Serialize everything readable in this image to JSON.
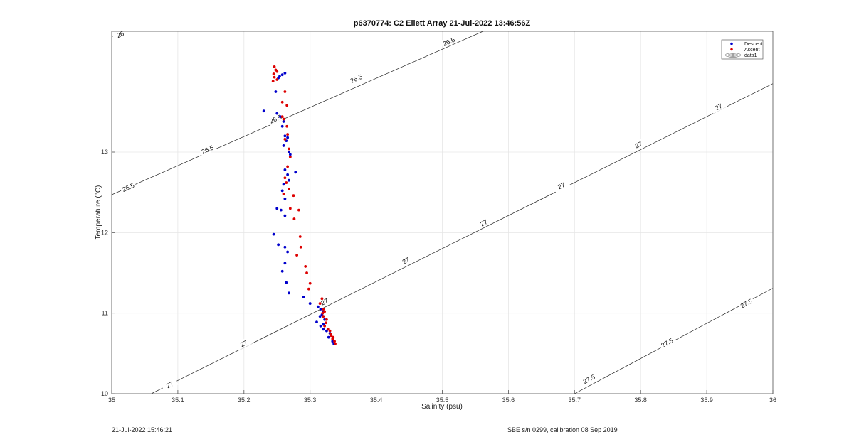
{
  "footer": {
    "left": "21-Jul-2022 15:46:21",
    "right": "SBE s/n 0299, calibration 08 Sep 2019"
  },
  "colors": {
    "descent": "#0000cc",
    "ascent": "#dd0000",
    "contour": "#222222",
    "grid": "#e6e6e6"
  },
  "chart_data": {
    "type": "scatter",
    "title": "p6370774: C2 Ellett Array 21-Jul-2022 13:46:56Z",
    "xlabel": "Salinity (psu)",
    "ylabel": "Temperature (°C)",
    "xlim": [
      35,
      36
    ],
    "ylim": [
      10,
      14.5
    ],
    "xticks": [
      35,
      35.1,
      35.2,
      35.3,
      35.4,
      35.5,
      35.6,
      35.7,
      35.8,
      35.9,
      36
    ],
    "xtick_labels": [
      "35",
      "35.1",
      "35.2",
      "35.3",
      "35.4",
      "35.5",
      "35.6",
      "35.7",
      "35.8",
      "35.9",
      "36"
    ],
    "yticks": [
      10,
      11,
      12,
      13
    ],
    "ytick_labels": [
      "10",
      "11",
      "12",
      "13"
    ],
    "grid": true,
    "legend_position": "top-right",
    "legend": [
      "Descent",
      "Ascent",
      "data1"
    ],
    "contours": [
      {
        "label": "26",
        "points": [
          [
            35,
            14.43
          ],
          [
            35.035,
            14.55
          ]
        ],
        "label_positions": [
          [
            35.013,
            14.46
          ]
        ]
      },
      {
        "label": "26.5",
        "points": [
          [
            35,
            12.47
          ],
          [
            35.7,
            15.0
          ]
        ],
        "label_positions": [
          [
            35.025,
            12.56
          ],
          [
            35.145,
            13.03
          ],
          [
            35.248,
            13.41
          ],
          [
            35.37,
            13.91
          ],
          [
            35.51,
            14.37
          ],
          [
            35.63,
            14.83
          ]
        ]
      },
      {
        "label": "27",
        "points": [
          [
            35.06,
            10.0
          ],
          [
            36.0,
            13.85
          ]
        ],
        "label_positions": [
          [
            35.088,
            10.11
          ],
          [
            35.2,
            10.62
          ],
          [
            35.322,
            11.14
          ],
          [
            35.445,
            11.65
          ],
          [
            35.563,
            12.12
          ],
          [
            35.68,
            12.58
          ],
          [
            35.797,
            13.09
          ],
          [
            35.918,
            13.56
          ]
        ]
      },
      {
        "label": "27.5",
        "points": [
          [
            35.7,
            10.0
          ],
          [
            36.0,
            11.31
          ]
        ],
        "label_positions": [
          [
            35.722,
            10.18
          ],
          [
            35.84,
            10.63
          ],
          [
            35.96,
            11.12
          ]
        ]
      }
    ],
    "series": [
      {
        "name": "Descent",
        "x": [
          35.254,
          35.258,
          35.252,
          35.262,
          35.248,
          35.23,
          35.25,
          35.255,
          35.26,
          35.258,
          35.262,
          35.266,
          35.264,
          35.26,
          35.268,
          35.27,
          35.278,
          35.262,
          35.266,
          35.268,
          35.26,
          35.258,
          35.262,
          35.25,
          35.256,
          35.262,
          35.245,
          35.252,
          35.262,
          35.266,
          35.262,
          35.258,
          35.264,
          35.268,
          35.29,
          35.3,
          35.312,
          35.316,
          35.32,
          35.318,
          35.315,
          35.322,
          35.32,
          35.31,
          35.316,
          35.32,
          35.325,
          35.33,
          35.328,
          35.334,
          35.336
        ],
        "y": [
          13.94,
          13.96,
          13.92,
          13.98,
          13.75,
          13.51,
          13.48,
          13.44,
          13.38,
          13.32,
          13.2,
          13.18,
          13.14,
          13.08,
          13.0,
          12.97,
          12.75,
          12.78,
          12.72,
          12.65,
          12.6,
          12.52,
          12.42,
          12.3,
          12.28,
          12.21,
          11.98,
          11.85,
          11.82,
          11.76,
          11.62,
          11.52,
          11.38,
          11.25,
          11.2,
          11.12,
          11.08,
          11.05,
          11.02,
          10.98,
          10.96,
          10.92,
          10.86,
          10.89,
          10.84,
          10.8,
          10.78,
          10.75,
          10.7,
          10.65,
          10.62
        ]
      },
      {
        "name": "Ascent",
        "x": [
          35.246,
          35.248,
          35.25,
          35.245,
          35.246,
          35.25,
          35.244,
          35.262,
          35.258,
          35.265,
          35.258,
          35.26,
          35.265,
          35.266,
          35.262,
          35.268,
          35.27,
          35.266,
          35.262,
          35.264,
          35.268,
          35.26,
          35.275,
          35.27,
          35.283,
          35.276,
          35.285,
          35.286,
          35.28,
          35.293,
          35.295,
          35.3,
          35.298,
          35.318,
          35.315,
          35.32,
          35.322,
          35.319,
          35.32,
          35.325,
          35.324,
          35.322,
          35.327,
          35.33,
          35.331,
          35.332,
          35.335,
          35.334,
          35.337,
          35.338
        ],
        "y": [
          14.06,
          14.02,
          14.0,
          13.97,
          13.93,
          13.9,
          13.88,
          13.75,
          13.62,
          13.58,
          13.44,
          13.41,
          13.32,
          13.22,
          13.16,
          13.04,
          12.94,
          12.82,
          12.68,
          12.62,
          12.54,
          12.48,
          12.46,
          12.3,
          12.28,
          12.17,
          11.95,
          11.82,
          11.72,
          11.58,
          11.5,
          11.37,
          11.3,
          11.18,
          11.12,
          11.05,
          11.02,
          11.0,
          10.96,
          10.92,
          10.88,
          10.84,
          10.8,
          10.78,
          10.74,
          10.72,
          10.7,
          10.68,
          10.65,
          10.62
        ]
      }
    ]
  }
}
